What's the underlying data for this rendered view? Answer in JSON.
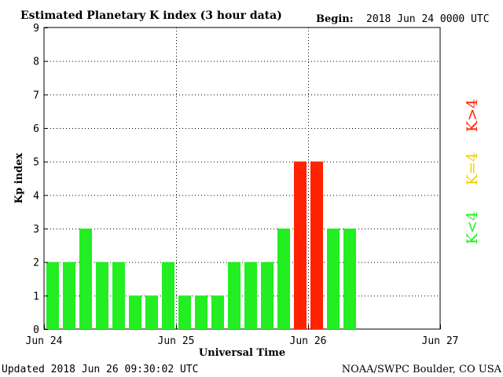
{
  "header": {
    "title": "Estimated Planetary K index (3 hour data)",
    "begin_label": "Begin:",
    "begin_value": "2018 Jun 24 0000 UTC"
  },
  "footer": {
    "updated": "Updated 2018 Jun 26 09:30:02 UTC",
    "source": "NOAA/SWPC Boulder, CO USA"
  },
  "legend": {
    "low": "K<4",
    "mid": "K=4",
    "high": "K>4"
  },
  "colors": {
    "low": "#22ee22",
    "mid": "#f0d000",
    "high": "#ff2200"
  },
  "chart_data": {
    "type": "bar",
    "title": "Estimated Planetary K index (3 hour data)",
    "xlabel": "Universal Time",
    "ylabel": "Kp index",
    "ylim": [
      0,
      9
    ],
    "yticks": [
      0,
      1,
      2,
      3,
      4,
      5,
      6,
      7,
      8,
      9
    ],
    "xticks": [
      "Jun 24",
      "Jun 25",
      "Jun 26",
      "Jun 27"
    ],
    "slots_per_day": 8,
    "days": 3,
    "values": [
      2,
      2,
      3,
      2,
      2,
      1,
      1,
      2,
      1,
      1,
      1,
      2,
      2,
      2,
      3,
      5,
      5,
      3,
      3
    ],
    "grid": true
  }
}
